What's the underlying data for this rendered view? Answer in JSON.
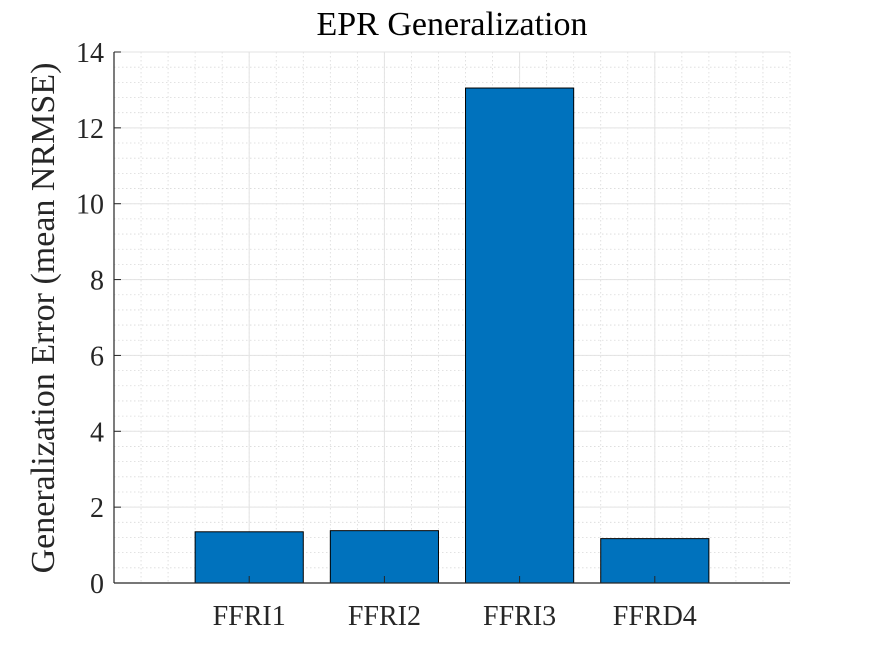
{
  "chart_data": {
    "type": "bar",
    "title": "EPR Generalization",
    "xlabel": "",
    "ylabel": "Generalization Error (mean NRMSE)",
    "categories": [
      "FFRI1",
      "FFRI2",
      "FFRI3",
      "FFRD4"
    ],
    "values": [
      1.35,
      1.38,
      13.05,
      1.17
    ],
    "ylim": [
      0,
      14
    ],
    "yticks": [
      0,
      2,
      4,
      6,
      8,
      10,
      12,
      14
    ],
    "xlim": [
      0,
      5
    ],
    "grid": "major and minor",
    "bar_color": "#0072BD",
    "edge_color": "#000000"
  }
}
